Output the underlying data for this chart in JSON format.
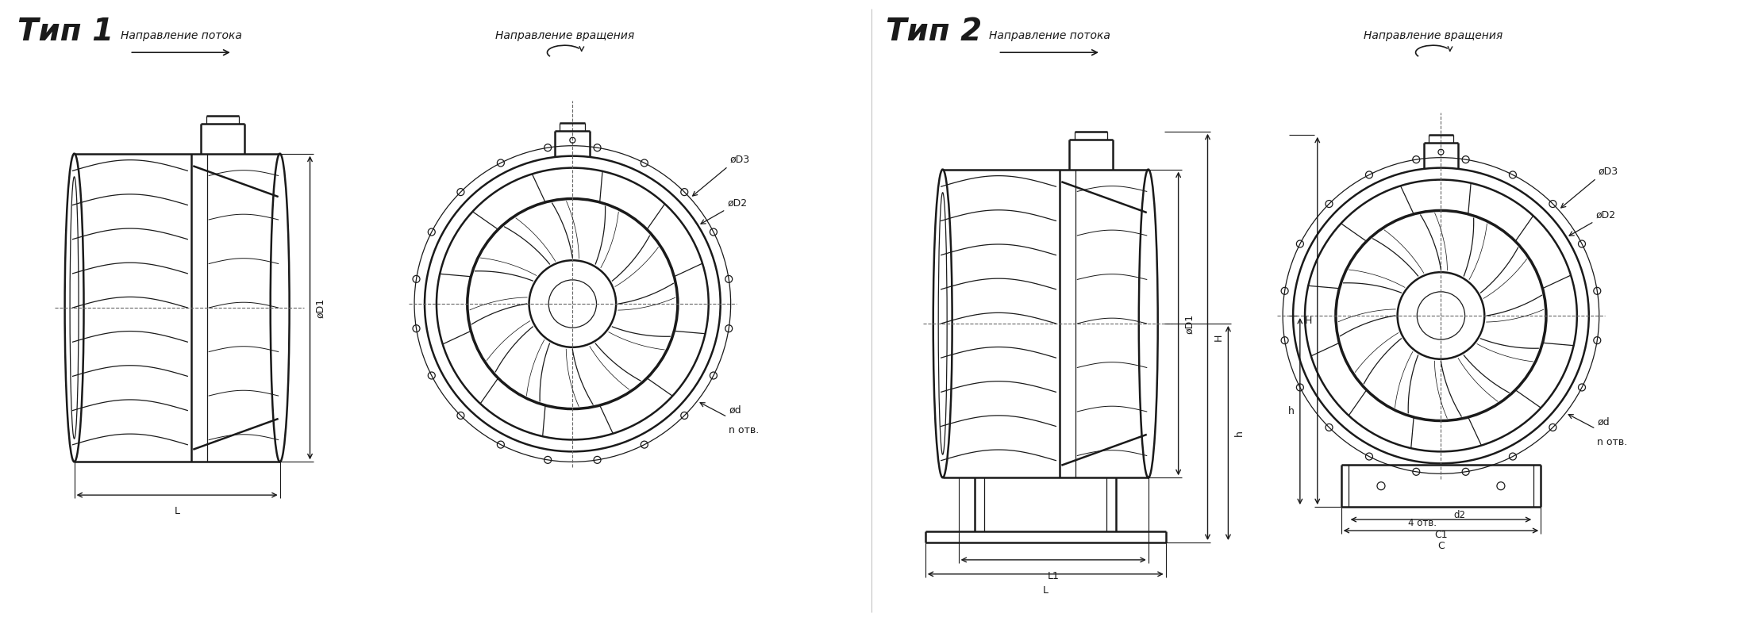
{
  "title1": "Тип 1",
  "title2": "Тип 2",
  "label_potoka": "Направление потока",
  "label_vrascheniya": "Направление вращения",
  "dim_L": "L",
  "dim_L1": "L1",
  "dim_D1": "øD1",
  "dim_D2": "øD2",
  "dim_D3": "øD3",
  "dim_d": "ød",
  "dim_n_otv": "n отв.",
  "dim_H": "H",
  "dim_h": "h",
  "dim_d2": "d2",
  "dim_C1": "C1",
  "dim_C": "C",
  "dim_4otv": "4 отв.",
  "bg_color": "#ffffff",
  "line_color": "#1a1a1a"
}
